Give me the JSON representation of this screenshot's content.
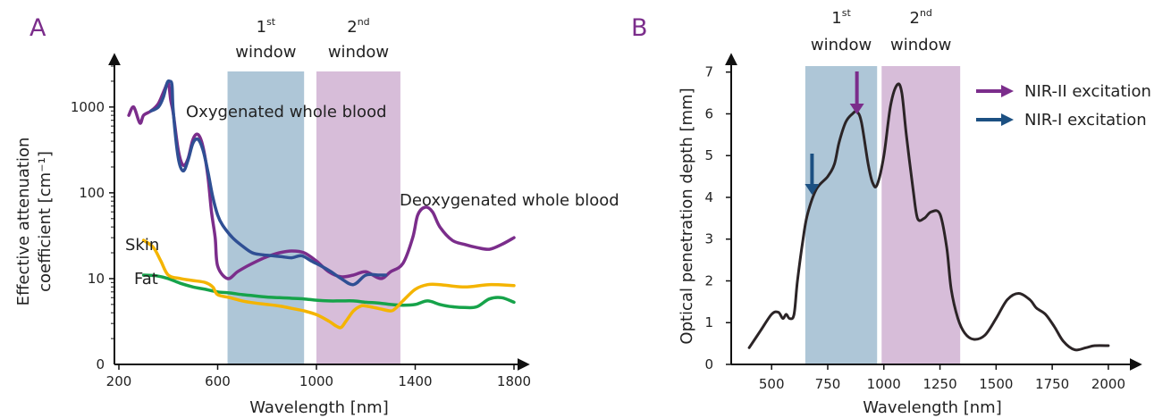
{
  "chart_data": [
    {
      "panel": "A",
      "type": "line",
      "xlabel": "Wavelength [nm]",
      "ylabel": "Effective attenuation coefficient [cm⁻¹]",
      "ylabel_line1": "Effective attenuation",
      "ylabel_line2": "coefficient [cm⁻¹]",
      "y_scale": "log",
      "xlim": [
        200,
        1800
      ],
      "ylim": [
        1,
        4000
      ],
      "x_ticks": [
        200,
        600,
        1000,
        1400,
        1800
      ],
      "y_ticks": [
        {
          "value": 10,
          "label": "10"
        },
        {
          "value": 100,
          "label": "100"
        },
        {
          "value": 1000,
          "label": "1000"
        }
      ],
      "y_origin_label": "0",
      "windows": [
        {
          "base": "1",
          "sup": "st",
          "text": "window",
          "x": [
            640,
            950
          ],
          "color": "#aec6d7"
        },
        {
          "base": "2",
          "sup": "nd",
          "text": "window",
          "x": [
            1000,
            1340
          ],
          "color": "#d7bdd9"
        }
      ],
      "series": [
        {
          "name": "Oxygenated whole blood",
          "color": "#2f4f94",
          "x": [
            330,
            360,
            380,
            395,
            405,
            415,
            420,
            440,
            460,
            480,
            500,
            520,
            540,
            560,
            580,
            600,
            620,
            660,
            700,
            740,
            780,
            820,
            860,
            900,
            940,
            980,
            1020,
            1060,
            1100,
            1150,
            1200,
            1250,
            1280
          ],
          "y": [
            900,
            1000,
            1300,
            1900,
            2000,
            1800,
            900,
            260,
            180,
            240,
            380,
            420,
            320,
            180,
            90,
            55,
            42,
            30,
            24,
            20,
            19,
            18.5,
            18,
            17.5,
            18.5,
            16,
            14,
            12,
            10,
            8.5,
            11,
            11,
            11
          ]
        },
        {
          "name": "Deoxygenated whole blood",
          "color": "#7b2d8b",
          "x": [
            240,
            260,
            285,
            300,
            330,
            360,
            385,
            400,
            410,
            420,
            440,
            460,
            480,
            500,
            520,
            540,
            560,
            575,
            590,
            600,
            640,
            680,
            720,
            760,
            800,
            850,
            900,
            950,
            1000,
            1050,
            1100,
            1150,
            1200,
            1260,
            1300,
            1350,
            1390,
            1410,
            1440,
            1470,
            1500,
            1550,
            1600,
            1650,
            1700,
            1750,
            1800
          ],
          "y": [
            800,
            1000,
            650,
            800,
            900,
            1100,
            1600,
            1900,
            1200,
            850,
            320,
            210,
            250,
            420,
            480,
            350,
            160,
            60,
            30,
            14,
            10,
            12,
            14,
            16,
            18,
            20,
            21,
            20,
            16,
            12,
            10.5,
            11,
            12,
            10,
            12,
            15,
            30,
            55,
            68,
            60,
            40,
            28,
            25,
            23,
            22,
            25,
            30
          ]
        },
        {
          "name": "Skin",
          "color": "#f4b400",
          "x": [
            300,
            340,
            370,
            400,
            450,
            500,
            550,
            580,
            600,
            650,
            700,
            750,
            800,
            850,
            900,
            950,
            1000,
            1050,
            1080,
            1100,
            1120,
            1150,
            1180,
            1200,
            1250,
            1300,
            1320,
            1350,
            1400,
            1450,
            1500,
            1600,
            1700,
            1800
          ],
          "y": [
            28,
            23,
            16,
            11,
            10,
            9.5,
            9,
            8,
            6.5,
            6,
            5.5,
            5.2,
            5,
            4.8,
            4.5,
            4.2,
            3.8,
            3.2,
            2.8,
            2.7,
            3.2,
            4.2,
            4.8,
            4.8,
            4.5,
            4.2,
            4.5,
            5.5,
            7.5,
            8.5,
            8.5,
            8,
            8.5,
            8.3
          ]
        },
        {
          "name": "Fat",
          "color": "#16a34a",
          "x": [
            300,
            350,
            400,
            450,
            500,
            550,
            600,
            650,
            700,
            750,
            800,
            850,
            900,
            950,
            1000,
            1050,
            1100,
            1150,
            1200,
            1250,
            1300,
            1350,
            1400,
            1450,
            1500,
            1550,
            1600,
            1650,
            1700,
            1750,
            1800
          ],
          "y": [
            11,
            10.8,
            10,
            8.8,
            8,
            7.5,
            7,
            6.8,
            6.5,
            6.3,
            6.1,
            6,
            5.9,
            5.8,
            5.6,
            5.5,
            5.5,
            5.5,
            5.3,
            5.2,
            5.0,
            4.9,
            5.0,
            5.5,
            5.0,
            4.7,
            4.6,
            4.7,
            5.8,
            6.0,
            5.3
          ]
        }
      ]
    },
    {
      "panel": "B",
      "type": "line",
      "xlabel": "Wavelength [nm]",
      "ylabel": "Optical penetration depth [mm]",
      "xlim": [
        320,
        2080
      ],
      "ylim": [
        0,
        7.4
      ],
      "x_ticks": [
        500,
        750,
        1000,
        1250,
        1500,
        1750,
        2000
      ],
      "y_ticks": [
        0,
        1,
        2,
        3,
        4,
        5,
        6,
        7
      ],
      "windows": [
        {
          "base": "1",
          "sup": "st",
          "text": "window",
          "x": [
            650,
            970
          ],
          "color": "#aec6d7"
        },
        {
          "base": "2",
          "sup": "nd",
          "text": "window",
          "x": [
            990,
            1340
          ],
          "color": "#d7bdd9"
        }
      ],
      "series": [
        {
          "name": "Optical penetration depth",
          "color": "#2b2426",
          "x": [
            400,
            450,
            500,
            530,
            550,
            565,
            580,
            600,
            615,
            640,
            660,
            700,
            750,
            780,
            800,
            830,
            860,
            880,
            900,
            930,
            950,
            970,
            1000,
            1030,
            1060,
            1080,
            1100,
            1130,
            1150,
            1180,
            1210,
            1250,
            1280,
            1300,
            1330,
            1360,
            1400,
            1450,
            1500,
            1550,
            1600,
            1650,
            1680,
            1720,
            1760,
            1800,
            1850,
            1900,
            1940,
            2000
          ],
          "y": [
            0.4,
            0.8,
            1.2,
            1.25,
            1.1,
            1.2,
            1.1,
            1.2,
            2.0,
            3.0,
            3.6,
            4.2,
            4.5,
            4.8,
            5.3,
            5.8,
            6.0,
            6.05,
            5.8,
            4.8,
            4.35,
            4.3,
            5.0,
            6.2,
            6.7,
            6.5,
            5.5,
            4.2,
            3.5,
            3.5,
            3.65,
            3.6,
            2.8,
            1.8,
            1.1,
            0.75,
            0.6,
            0.7,
            1.1,
            1.55,
            1.7,
            1.55,
            1.35,
            1.2,
            0.9,
            0.55,
            0.35,
            0.4,
            0.45,
            0.45
          ]
        }
      ],
      "arrows": [
        {
          "name": "NIR-II excitation",
          "x": 880,
          "color": "#7b2d8b"
        },
        {
          "name": "NIR-I excitation",
          "x": 680,
          "color": "#1c5082"
        }
      ]
    }
  ],
  "labels": {
    "panel_a_letter": "A",
    "panel_b_letter": "B",
    "oxy_label": "Oxygenated whole blood",
    "deoxy_label": "Deoxygenated whole blood",
    "skin_label": "Skin",
    "fat_label": "Fat"
  },
  "legend": [
    {
      "label": "NIR-II excitation",
      "color": "#7b2d8b"
    },
    {
      "label": "NIR-I excitation",
      "color": "#1c5082"
    }
  ]
}
